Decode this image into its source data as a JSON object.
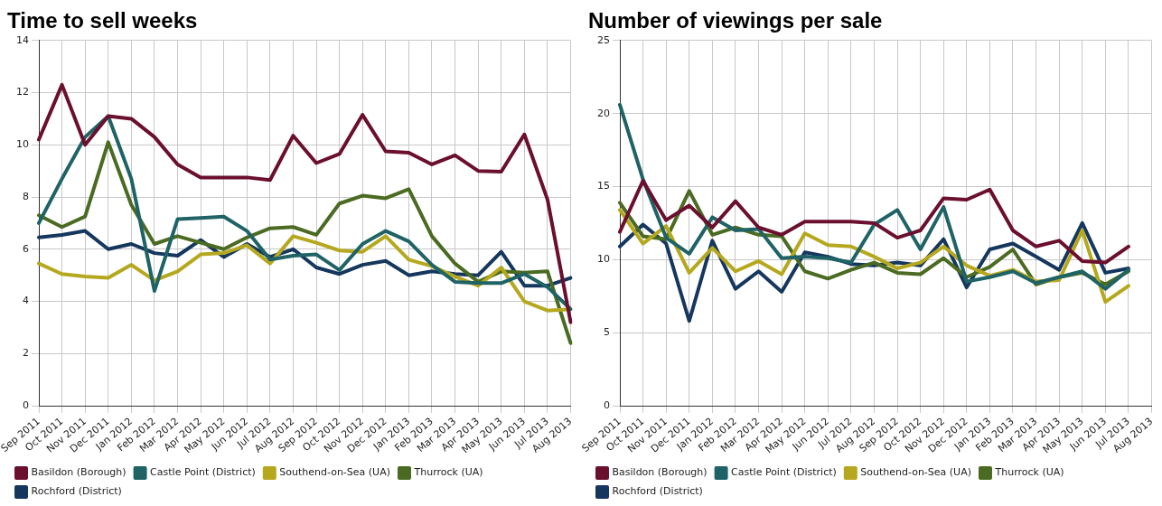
{
  "chart_data": [
    {
      "type": "line",
      "title": "Time to sell weeks",
      "categories": [
        "Sep 2011",
        "Oct 2011",
        "Nov 2011",
        "Dec 2011",
        "Jan 2012",
        "Feb 2012",
        "Mar 2012",
        "Apr 2012",
        "May 2012",
        "Jun 2012",
        "Jul 2012",
        "Aug 2012",
        "Sep 2012",
        "Oct 2012",
        "Nov 2012",
        "Dec 2012",
        "Jan 2013",
        "Feb 2013",
        "Mar 2013",
        "Apr 2013",
        "May 2013",
        "Jun 2013",
        "Jul 2013",
        "Aug 2013"
      ],
      "series": [
        {
          "name": "Basildon (Borough)",
          "color": "#6b0f2e",
          "values": [
            10.2,
            12.3,
            10.0,
            11.1,
            11.0,
            10.3,
            9.25,
            8.75,
            8.75,
            8.75,
            8.65,
            10.35,
            9.3,
            9.65,
            11.15,
            9.75,
            9.7,
            9.25,
            9.6,
            9.0,
            8.97,
            10.4,
            7.9,
            3.2
          ]
        },
        {
          "name": "Castle Point (District)",
          "color": "#1f6366",
          "values": [
            7.0,
            8.7,
            10.3,
            11.1,
            8.7,
            4.4,
            7.15,
            7.2,
            7.25,
            6.7,
            5.6,
            5.75,
            5.8,
            5.2,
            6.2,
            6.7,
            6.3,
            5.4,
            4.75,
            4.7,
            4.7,
            5.05,
            4.55,
            3.7
          ]
        },
        {
          "name": "Southend-on-Sea (UA)",
          "color": "#b5a81e",
          "values": [
            5.45,
            5.05,
            4.95,
            4.9,
            5.4,
            4.8,
            5.15,
            5.8,
            5.85,
            6.15,
            5.45,
            6.5,
            6.25,
            5.95,
            5.9,
            6.5,
            5.6,
            5.35,
            4.95,
            4.6,
            5.3,
            4.0,
            3.65,
            3.7
          ]
        },
        {
          "name": "Thurrock (UA)",
          "color": "#4a6b21",
          "values": [
            7.3,
            6.85,
            7.25,
            10.1,
            7.7,
            6.2,
            6.5,
            6.25,
            6.0,
            6.45,
            6.8,
            6.85,
            6.55,
            7.75,
            8.05,
            7.95,
            8.3,
            6.5,
            5.45,
            4.75,
            5.15,
            5.1,
            5.15,
            2.4
          ]
        },
        {
          "name": "Rochford (District)",
          "color": "#15375e",
          "values": [
            6.45,
            6.55,
            6.7,
            6.0,
            6.2,
            5.85,
            5.75,
            6.35,
            5.7,
            6.2,
            5.7,
            6.0,
            5.3,
            5.05,
            5.4,
            5.55,
            5.0,
            5.15,
            5.05,
            5.0,
            5.9,
            4.6,
            4.6,
            4.9
          ]
        }
      ],
      "ylim": [
        0,
        14
      ],
      "yticks": [
        0,
        2,
        4,
        6,
        8,
        10,
        12,
        14
      ],
      "grid": true,
      "legend": "bottom",
      "marker": "none",
      "line_style": "solid"
    },
    {
      "type": "line",
      "title": "Number of viewings per sale",
      "categories": [
        "Sep 2011",
        "Oct 2011",
        "Nov 2011",
        "Dec 2011",
        "Jan 2012",
        "Feb 2012",
        "Mar 2012",
        "Apr 2012",
        "May 2012",
        "Jun 2012",
        "Jul 2012",
        "Aug 2012",
        "Sep 2012",
        "Oct 2012",
        "Nov 2012",
        "Dec 2012",
        "Jan 2013",
        "Feb 2013",
        "Mar 2013",
        "Apr 2013",
        "May 2013",
        "Jun 2013",
        "Jul 2013",
        "Aug 2013"
      ],
      "series": [
        {
          "name": "Basildon (Borough)",
          "color": "#6b0f2e",
          "values": [
            11.9,
            15.4,
            12.7,
            13.7,
            12.2,
            14.0,
            12.2,
            11.7,
            12.6,
            12.6,
            12.6,
            12.5,
            11.5,
            12.0,
            14.2,
            14.1,
            14.8,
            12.0,
            10.9,
            11.3,
            9.9,
            9.8,
            10.9,
            null
          ]
        },
        {
          "name": "Castle Point (District)",
          "color": "#1f6366",
          "values": [
            20.6,
            15.5,
            11.5,
            10.4,
            12.9,
            12.0,
            12.1,
            10.1,
            10.2,
            10.1,
            9.8,
            12.4,
            13.4,
            10.7,
            13.6,
            8.5,
            8.8,
            9.2,
            8.4,
            8.8,
            9.2,
            8.0,
            9.3,
            null
          ]
        },
        {
          "name": "Southend-on-Sea (UA)",
          "color": "#b5a81e",
          "values": [
            13.4,
            11.1,
            12.3,
            9.1,
            10.8,
            9.2,
            9.9,
            9.0,
            11.8,
            11.0,
            10.9,
            10.2,
            9.4,
            9.8,
            10.9,
            9.6,
            8.9,
            9.3,
            8.5,
            8.6,
            12.0,
            7.1,
            8.2,
            null
          ]
        },
        {
          "name": "Thurrock (UA)",
          "color": "#4a6b21",
          "values": [
            13.9,
            11.6,
            11.4,
            14.7,
            11.7,
            12.2,
            11.7,
            11.6,
            9.2,
            8.7,
            9.3,
            9.8,
            9.1,
            9.0,
            10.1,
            8.8,
            9.5,
            10.7,
            8.3,
            8.8,
            9.1,
            8.3,
            9.2,
            null
          ]
        },
        {
          "name": "Rochford (District)",
          "color": "#15375e",
          "values": [
            10.9,
            12.4,
            11.1,
            5.8,
            11.3,
            8.0,
            9.2,
            7.8,
            10.5,
            10.2,
            9.7,
            9.6,
            9.8,
            9.6,
            11.4,
            8.1,
            10.7,
            11.1,
            10.2,
            9.3,
            12.5,
            9.1,
            9.4,
            null
          ]
        }
      ],
      "ylim": [
        0,
        25
      ],
      "yticks": [
        0,
        5,
        10,
        15,
        20,
        25
      ],
      "grid": true,
      "legend": "bottom",
      "marker": "none",
      "line_style": "solid"
    }
  ]
}
